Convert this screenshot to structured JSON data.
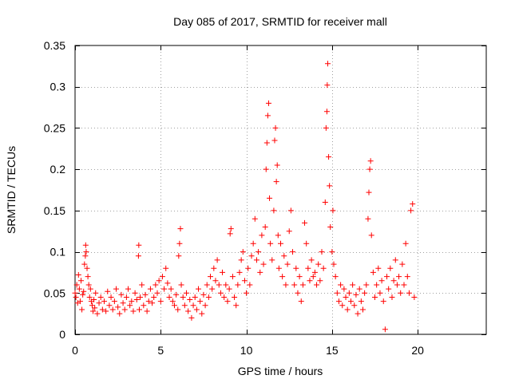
{
  "chart_data": {
    "type": "scatter",
    "title": "Day 085 of 2017, SRMTID for receiver mall",
    "xlabel": "GPS time / hours",
    "ylabel": "SRMTID / TECUs",
    "xlim": [
      0,
      24
    ],
    "ylim": [
      0,
      0.35
    ],
    "xticks": [
      0,
      5,
      10,
      15,
      20
    ],
    "xtick_labels": [
      "0",
      "5",
      "10",
      "15",
      "20"
    ],
    "yticks": [
      0,
      0.05,
      0.1,
      0.15,
      0.2,
      0.25,
      0.3,
      0.35
    ],
    "ytick_labels": [
      "0",
      "0.05",
      "0.1",
      "0.15",
      "0.2",
      "0.25",
      "0.3",
      "0.35"
    ],
    "grid": true,
    "marker": "+",
    "color": "#ff0000",
    "series": [
      {
        "name": "SRMTID",
        "points": [
          [
            0.0,
            0.05
          ],
          [
            0.05,
            0.045
          ],
          [
            0.1,
            0.06
          ],
          [
            0.15,
            0.038
          ],
          [
            0.2,
            0.072
          ],
          [
            0.25,
            0.055
          ],
          [
            0.3,
            0.04
          ],
          [
            0.35,
            0.065
          ],
          [
            0.4,
            0.03
          ],
          [
            0.45,
            0.048
          ],
          [
            0.5,
            0.052
          ],
          [
            0.55,
            0.085
          ],
          [
            0.6,
            0.095
          ],
          [
            0.62,
            0.108
          ],
          [
            0.65,
            0.1
          ],
          [
            0.7,
            0.08
          ],
          [
            0.75,
            0.07
          ],
          [
            0.8,
            0.06
          ],
          [
            0.85,
            0.045
          ],
          [
            0.9,
            0.055
          ],
          [
            0.95,
            0.04
          ],
          [
            1.0,
            0.035
          ],
          [
            1.05,
            0.028
          ],
          [
            1.1,
            0.042
          ],
          [
            1.15,
            0.032
          ],
          [
            1.2,
            0.05
          ],
          [
            1.3,
            0.025
          ],
          [
            1.4,
            0.038
          ],
          [
            1.5,
            0.045
          ],
          [
            1.6,
            0.03
          ],
          [
            1.7,
            0.04
          ],
          [
            1.8,
            0.028
          ],
          [
            1.9,
            0.052
          ],
          [
            2.0,
            0.035
          ],
          [
            2.1,
            0.045
          ],
          [
            2.2,
            0.03
          ],
          [
            2.3,
            0.04
          ],
          [
            2.4,
            0.055
          ],
          [
            2.5,
            0.033
          ],
          [
            2.6,
            0.025
          ],
          [
            2.7,
            0.048
          ],
          [
            2.8,
            0.038
          ],
          [
            2.9,
            0.03
          ],
          [
            3.0,
            0.045
          ],
          [
            3.1,
            0.055
          ],
          [
            3.2,
            0.035
          ],
          [
            3.3,
            0.04
          ],
          [
            3.4,
            0.028
          ],
          [
            3.5,
            0.05
          ],
          [
            3.6,
            0.042
          ],
          [
            3.7,
            0.095
          ],
          [
            3.72,
            0.108
          ],
          [
            3.75,
            0.03
          ],
          [
            3.8,
            0.045
          ],
          [
            3.9,
            0.06
          ],
          [
            4.0,
            0.035
          ],
          [
            4.1,
            0.048
          ],
          [
            4.2,
            0.028
          ],
          [
            4.3,
            0.04
          ],
          [
            4.4,
            0.055
          ],
          [
            4.5,
            0.038
          ],
          [
            4.6,
            0.045
          ],
          [
            4.7,
            0.06
          ],
          [
            4.8,
            0.05
          ],
          [
            4.9,
            0.065
          ],
          [
            5.0,
            0.04
          ],
          [
            5.1,
            0.07
          ],
          [
            5.2,
            0.055
          ],
          [
            5.3,
            0.08
          ],
          [
            5.4,
            0.062
          ],
          [
            5.5,
            0.045
          ],
          [
            5.6,
            0.055
          ],
          [
            5.7,
            0.04
          ],
          [
            5.8,
            0.035
          ],
          [
            5.9,
            0.048
          ],
          [
            6.0,
            0.03
          ],
          [
            6.05,
            0.095
          ],
          [
            6.1,
            0.11
          ],
          [
            6.15,
            0.128
          ],
          [
            6.2,
            0.06
          ],
          [
            6.3,
            0.045
          ],
          [
            6.4,
            0.035
          ],
          [
            6.5,
            0.05
          ],
          [
            6.6,
            0.028
          ],
          [
            6.7,
            0.042
          ],
          [
            6.8,
            0.02
          ],
          [
            6.9,
            0.035
          ],
          [
            7.0,
            0.045
          ],
          [
            7.1,
            0.03
          ],
          [
            7.2,
            0.055
          ],
          [
            7.3,
            0.04
          ],
          [
            7.4,
            0.025
          ],
          [
            7.5,
            0.048
          ],
          [
            7.6,
            0.035
          ],
          [
            7.7,
            0.06
          ],
          [
            7.8,
            0.045
          ],
          [
            7.9,
            0.07
          ],
          [
            8.0,
            0.055
          ],
          [
            8.1,
            0.08
          ],
          [
            8.2,
            0.065
          ],
          [
            8.3,
            0.09
          ],
          [
            8.4,
            0.06
          ],
          [
            8.5,
            0.05
          ],
          [
            8.6,
            0.075
          ],
          [
            8.7,
            0.045
          ],
          [
            8.8,
            0.06
          ],
          [
            8.9,
            0.04
          ],
          [
            9.0,
            0.055
          ],
          [
            9.05,
            0.122
          ],
          [
            9.1,
            0.128
          ],
          [
            9.2,
            0.07
          ],
          [
            9.3,
            0.045
          ],
          [
            9.4,
            0.035
          ],
          [
            9.5,
            0.06
          ],
          [
            9.6,
            0.075
          ],
          [
            9.7,
            0.09
          ],
          [
            9.8,
            0.1
          ],
          [
            9.9,
            0.065
          ],
          [
            10.0,
            0.05
          ],
          [
            10.1,
            0.08
          ],
          [
            10.2,
            0.06
          ],
          [
            10.3,
            0.095
          ],
          [
            10.4,
            0.11
          ],
          [
            10.5,
            0.14
          ],
          [
            10.6,
            0.09
          ],
          [
            10.7,
            0.1
          ],
          [
            10.8,
            0.075
          ],
          [
            10.9,
            0.12
          ],
          [
            11.0,
            0.085
          ],
          [
            11.1,
            0.13
          ],
          [
            11.15,
            0.2
          ],
          [
            11.2,
            0.232
          ],
          [
            11.25,
            0.265
          ],
          [
            11.3,
            0.28
          ],
          [
            11.35,
            0.165
          ],
          [
            11.4,
            0.11
          ],
          [
            11.5,
            0.09
          ],
          [
            11.6,
            0.15
          ],
          [
            11.65,
            0.235
          ],
          [
            11.7,
            0.25
          ],
          [
            11.75,
            0.185
          ],
          [
            11.8,
            0.205
          ],
          [
            11.85,
            0.12
          ],
          [
            11.9,
            0.08
          ],
          [
            12.0,
            0.11
          ],
          [
            12.1,
            0.07
          ],
          [
            12.2,
            0.095
          ],
          [
            12.3,
            0.06
          ],
          [
            12.4,
            0.085
          ],
          [
            12.5,
            0.125
          ],
          [
            12.6,
            0.15
          ],
          [
            12.7,
            0.1
          ],
          [
            12.8,
            0.06
          ],
          [
            12.9,
            0.08
          ],
          [
            13.0,
            0.05
          ],
          [
            13.1,
            0.07
          ],
          [
            13.2,
            0.04
          ],
          [
            13.3,
            0.06
          ],
          [
            13.4,
            0.135
          ],
          [
            13.5,
            0.11
          ],
          [
            13.6,
            0.08
          ],
          [
            13.7,
            0.065
          ],
          [
            13.8,
            0.09
          ],
          [
            13.9,
            0.07
          ],
          [
            14.0,
            0.075
          ],
          [
            14.1,
            0.06
          ],
          [
            14.2,
            0.085
          ],
          [
            14.3,
            0.065
          ],
          [
            14.4,
            0.1
          ],
          [
            14.5,
            0.08
          ],
          [
            14.6,
            0.16
          ],
          [
            14.65,
            0.25
          ],
          [
            14.7,
            0.27
          ],
          [
            14.72,
            0.302
          ],
          [
            14.75,
            0.328
          ],
          [
            14.8,
            0.215
          ],
          [
            14.85,
            0.18
          ],
          [
            14.9,
            0.13
          ],
          [
            15.0,
            0.1
          ],
          [
            15.05,
            0.15
          ],
          [
            15.1,
            0.085
          ],
          [
            15.2,
            0.07
          ],
          [
            15.3,
            0.05
          ],
          [
            15.4,
            0.04
          ],
          [
            15.5,
            0.06
          ],
          [
            15.6,
            0.035
          ],
          [
            15.7,
            0.055
          ],
          [
            15.8,
            0.045
          ],
          [
            15.9,
            0.03
          ],
          [
            16.0,
            0.05
          ],
          [
            16.1,
            0.04
          ],
          [
            16.2,
            0.06
          ],
          [
            16.3,
            0.035
          ],
          [
            16.4,
            0.048
          ],
          [
            16.5,
            0.025
          ],
          [
            16.6,
            0.055
          ],
          [
            16.7,
            0.04
          ],
          [
            16.8,
            0.03
          ],
          [
            16.9,
            0.05
          ],
          [
            17.0,
            0.06
          ],
          [
            17.1,
            0.14
          ],
          [
            17.15,
            0.172
          ],
          [
            17.2,
            0.2
          ],
          [
            17.25,
            0.21
          ],
          [
            17.3,
            0.12
          ],
          [
            17.4,
            0.075
          ],
          [
            17.5,
            0.045
          ],
          [
            17.6,
            0.06
          ],
          [
            17.7,
            0.08
          ],
          [
            17.8,
            0.05
          ],
          [
            17.9,
            0.065
          ],
          [
            18.0,
            0.04
          ],
          [
            18.1,
            0.006
          ],
          [
            18.2,
            0.07
          ],
          [
            18.3,
            0.055
          ],
          [
            18.4,
            0.08
          ],
          [
            18.5,
            0.045
          ],
          [
            18.6,
            0.065
          ],
          [
            18.7,
            0.09
          ],
          [
            18.8,
            0.06
          ],
          [
            18.9,
            0.07
          ],
          [
            19.0,
            0.05
          ],
          [
            19.1,
            0.085
          ],
          [
            19.2,
            0.06
          ],
          [
            19.3,
            0.11
          ],
          [
            19.4,
            0.07
          ],
          [
            19.5,
            0.05
          ],
          [
            19.6,
            0.15
          ],
          [
            19.7,
            0.158
          ],
          [
            19.8,
            0.045
          ]
        ]
      }
    ]
  }
}
